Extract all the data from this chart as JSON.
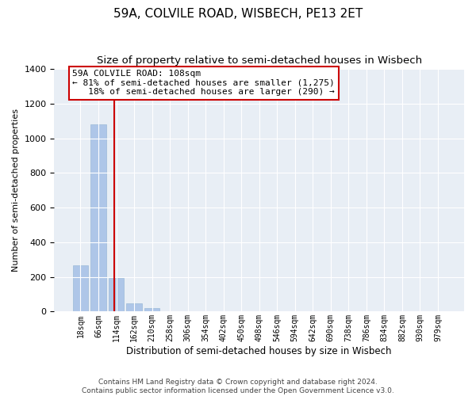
{
  "title": "59A, COLVILE ROAD, WISBECH, PE13 2ET",
  "subtitle": "Size of property relative to semi-detached houses in Wisbech",
  "xlabel": "Distribution of semi-detached houses by size in Wisbech",
  "ylabel": "Number of semi-detached properties",
  "categories": [
    "18sqm",
    "66sqm",
    "114sqm",
    "162sqm",
    "210sqm",
    "258sqm",
    "306sqm",
    "354sqm",
    "402sqm",
    "450sqm",
    "498sqm",
    "546sqm",
    "594sqm",
    "642sqm",
    "690sqm",
    "738sqm",
    "786sqm",
    "834sqm",
    "882sqm",
    "930sqm",
    "979sqm"
  ],
  "values": [
    265,
    1080,
    195,
    48,
    18,
    0,
    0,
    0,
    0,
    0,
    0,
    0,
    0,
    0,
    0,
    0,
    0,
    0,
    0,
    0,
    0
  ],
  "bar_color": "#aec6e8",
  "bar_edge_color": "#9bbad8",
  "vline_x": 1.875,
  "vline_color": "#cc0000",
  "annotation_line1": "59A COLVILE ROAD: 108sqm",
  "annotation_line2": "← 81% of semi-detached houses are smaller (1,275)",
  "annotation_line3": "   18% of semi-detached houses are larger (290) →",
  "annotation_box_color": "#ffffff",
  "annotation_box_edge": "#cc0000",
  "ylim": [
    0,
    1400
  ],
  "yticks": [
    0,
    200,
    400,
    600,
    800,
    1000,
    1200,
    1400
  ],
  "footer1": "Contains HM Land Registry data © Crown copyright and database right 2024.",
  "footer2": "Contains public sector information licensed under the Open Government Licence v3.0.",
  "bg_color": "#e8eef5",
  "title_fontsize": 11,
  "subtitle_fontsize": 9.5,
  "ylabel_fontsize": 8,
  "xlabel_fontsize": 8.5,
  "tick_fontsize": 8,
  "xtick_fontsize": 7,
  "ann_fontsize": 8,
  "footer_fontsize": 6.5
}
